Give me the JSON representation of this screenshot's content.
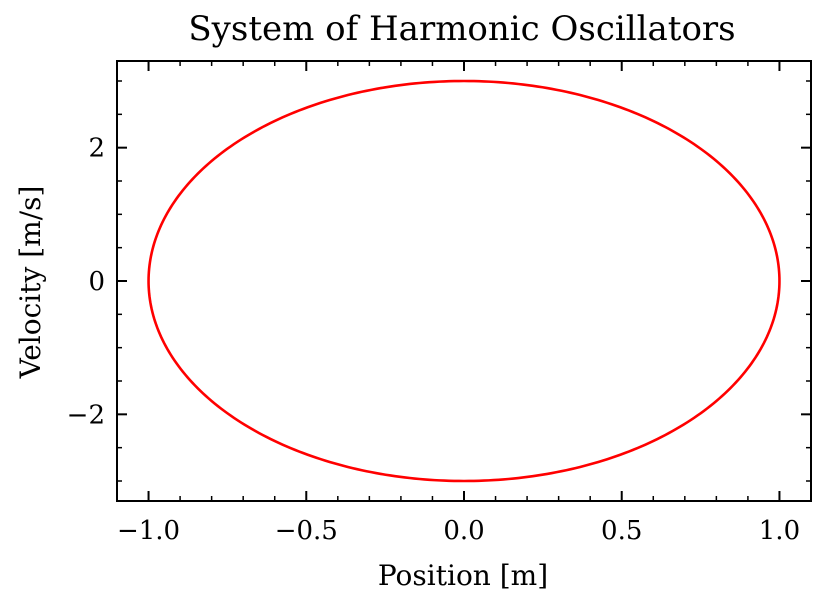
{
  "chart_data": {
    "type": "line",
    "title": "System of Harmonic Oscillators",
    "xlabel": "Position [m]",
    "ylabel": "Velocity [m/s]",
    "xlim": [
      -1.1,
      1.1
    ],
    "ylim": [
      -3.3,
      3.3
    ],
    "xticks": [
      -1.0,
      -0.5,
      0.0,
      0.5,
      1.0
    ],
    "xtick_labels": [
      "−1.0",
      "−0.5",
      "0.0",
      "0.5",
      "1.0"
    ],
    "yticks": [
      -2,
      0,
      2
    ],
    "ytick_labels": [
      "−2",
      "0",
      "2"
    ],
    "x_minor_step": 0.1,
    "y_minor_step": 0.5,
    "grid": false,
    "line_color": "#ff0000",
    "series": [
      {
        "description": "phase-space ellipse x = A cos t, v = B sin t",
        "amplitude_position": 1.0,
        "amplitude_velocity": 3.0
      }
    ]
  }
}
